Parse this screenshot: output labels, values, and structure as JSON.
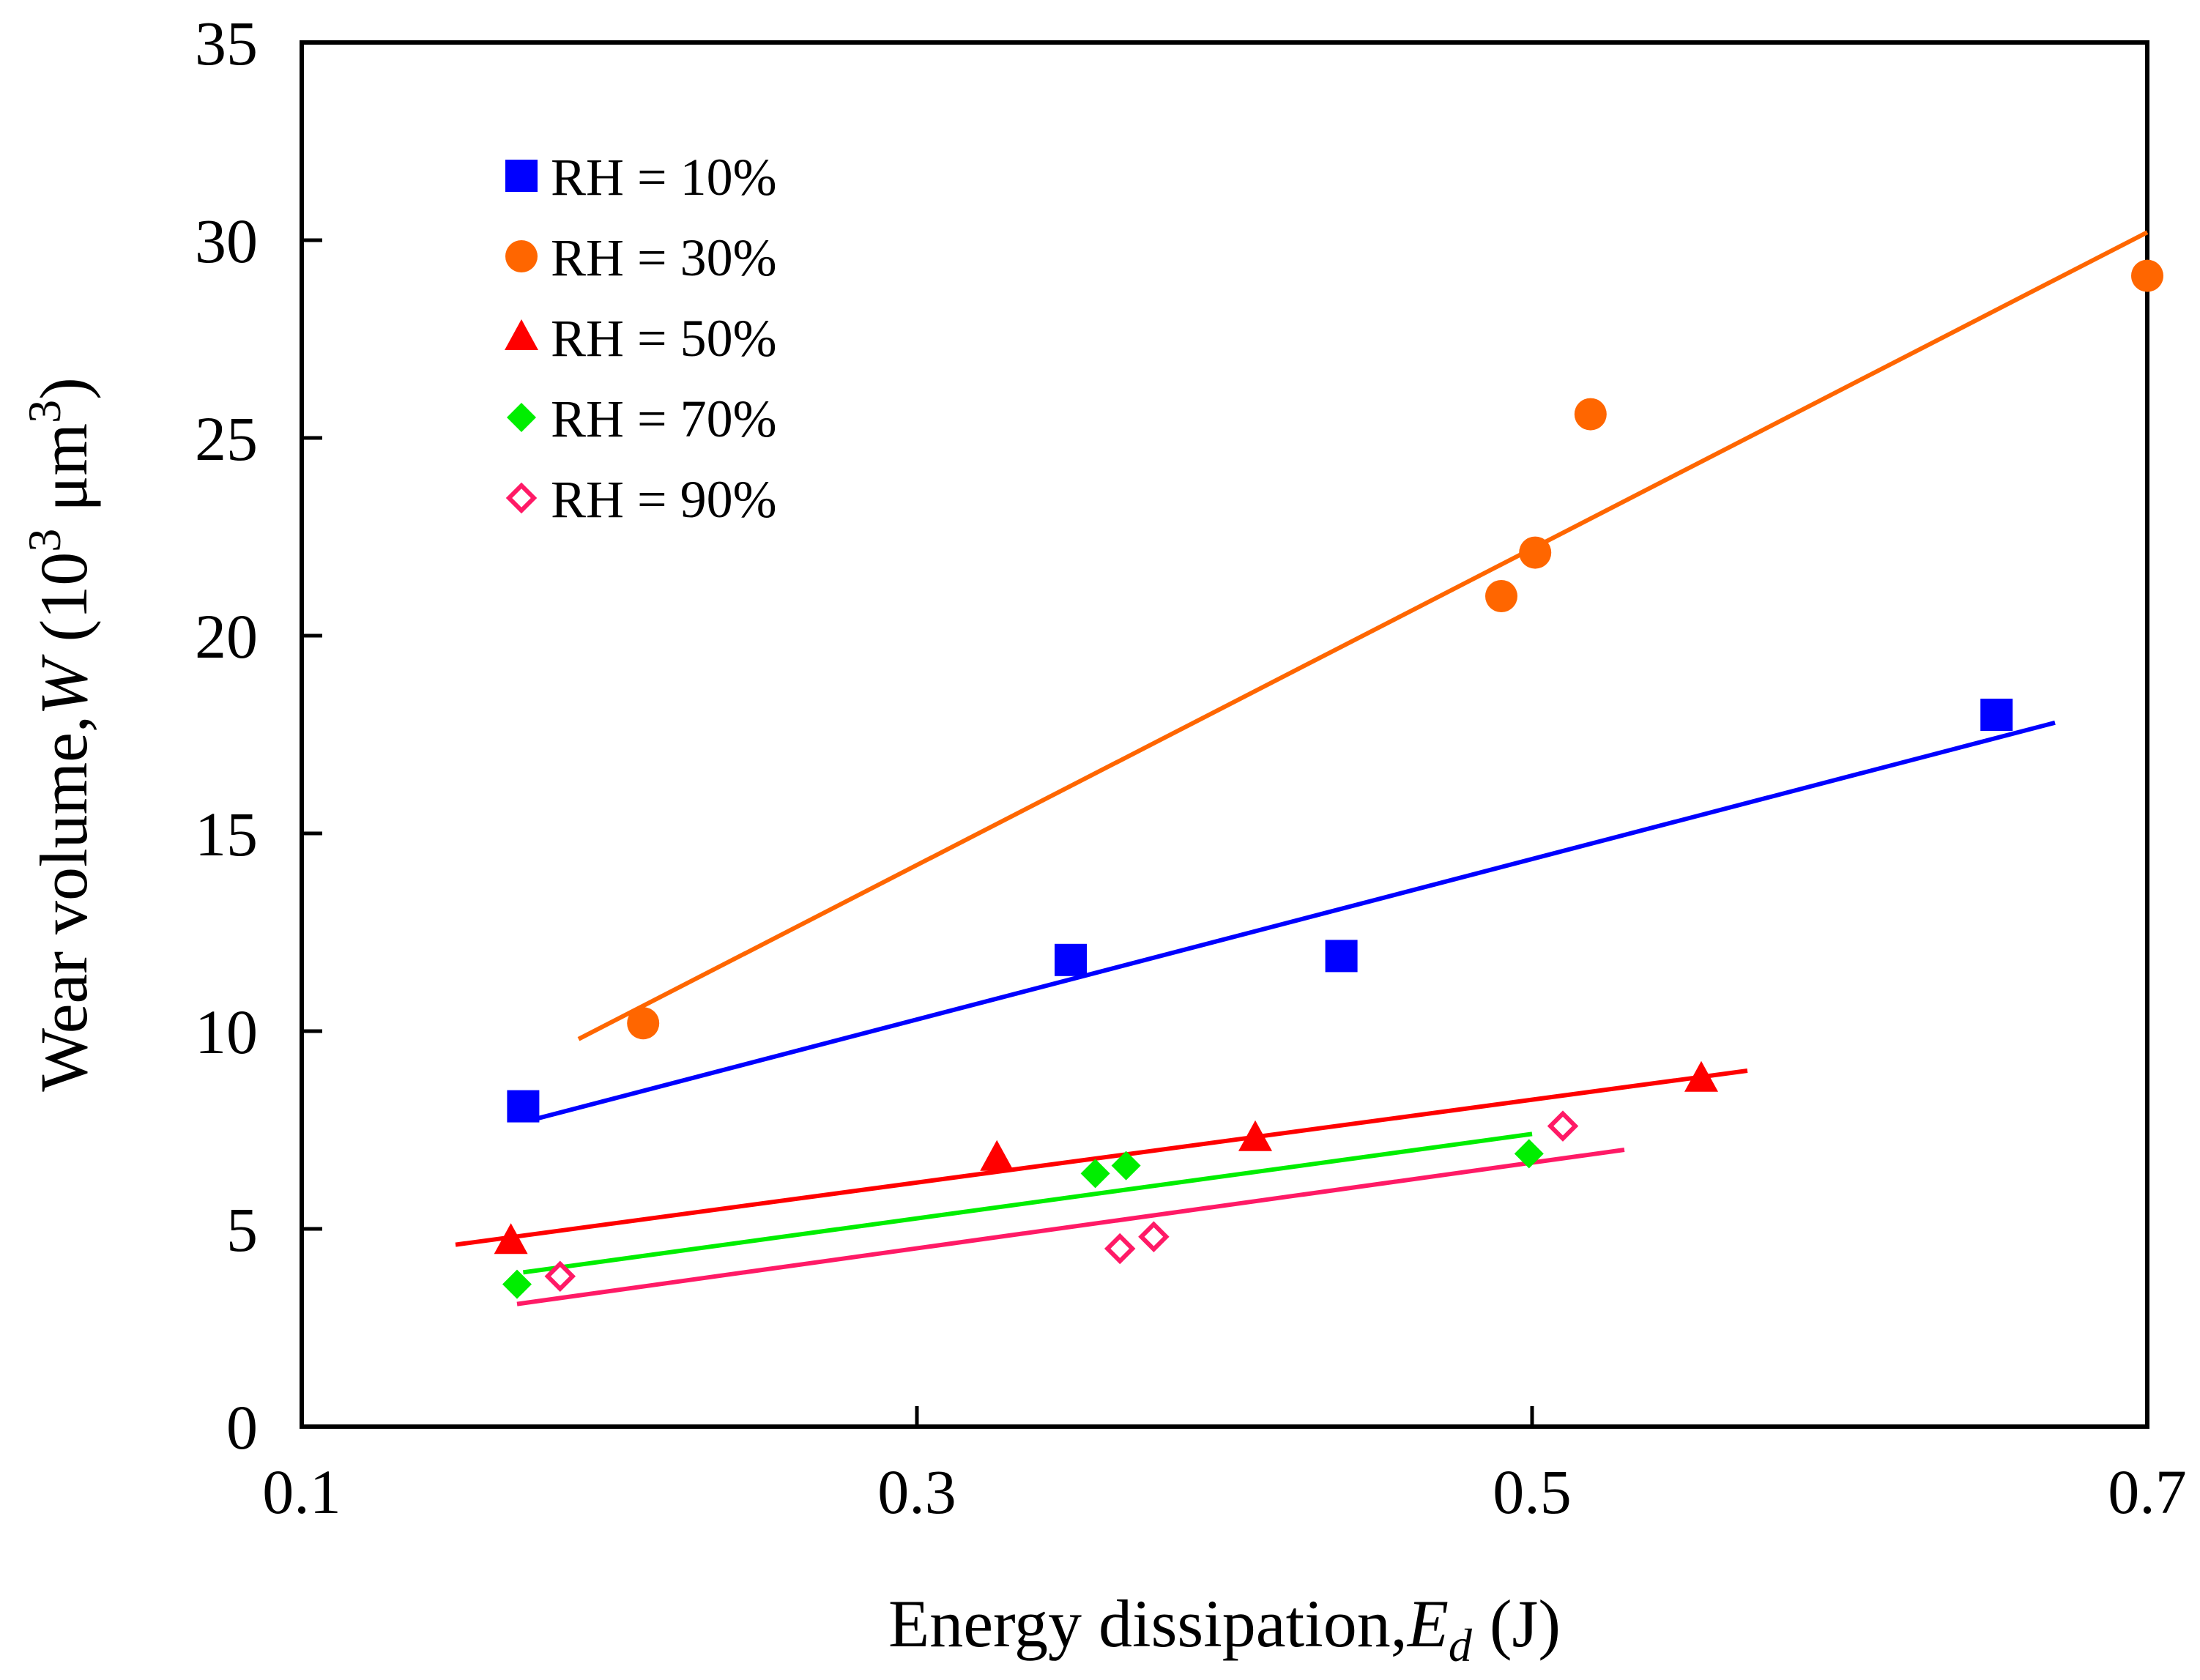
{
  "chart_data": {
    "type": "scatter",
    "title": "",
    "xlabel": "Energy dissipation,",
    "xlabel_var": "E",
    "xlabel_sub": "d",
    "xlabel_unit": "(J)",
    "ylabel": "Wear volume,",
    "ylabel_var": "W",
    "ylabel_unit_pre": "(10",
    "ylabel_unit_exp1": "3",
    "ylabel_unit_mid": " μm",
    "ylabel_unit_exp2": "3",
    "ylabel_unit_post": ")",
    "xlim": [
      0.1,
      0.7
    ],
    "ylim": [
      0,
      35
    ],
    "xticks": [
      0.1,
      0.3,
      0.5,
      0.7
    ],
    "xtick_labels": [
      "0.1",
      "0.3",
      "0.5",
      "0.7"
    ],
    "yticks": [
      0,
      5,
      10,
      15,
      20,
      25,
      30,
      35
    ],
    "ytick_labels": [
      "0",
      "5",
      "10",
      "15",
      "20",
      "25",
      "30",
      "35"
    ],
    "grid": false,
    "legend_position": "top-left",
    "series": [
      {
        "name": "RH = 10%",
        "marker": "square",
        "color": "#0000ff",
        "points": [
          [
            0.172,
            8.1
          ],
          [
            0.35,
            11.8
          ],
          [
            0.438,
            11.9
          ],
          [
            0.651,
            18.0
          ]
        ],
        "fit": [
          [
            0.177,
            7.8
          ],
          [
            0.67,
            17.8
          ]
        ]
      },
      {
        "name": "RH = 30%",
        "marker": "circle",
        "color": "#ff6600",
        "points": [
          [
            0.211,
            10.2
          ],
          [
            0.49,
            21.0
          ],
          [
            0.501,
            22.1
          ],
          [
            0.519,
            25.6
          ],
          [
            0.7,
            29.1
          ]
        ],
        "fit": [
          [
            0.19,
            9.8
          ],
          [
            0.7,
            30.2
          ]
        ]
      },
      {
        "name": "RH = 50%",
        "marker": "triangle",
        "color": "#ff0000",
        "points": [
          [
            0.168,
            4.7
          ],
          [
            0.326,
            6.8
          ],
          [
            0.41,
            7.3
          ],
          [
            0.555,
            8.8
          ]
        ],
        "fit": [
          [
            0.15,
            4.6
          ],
          [
            0.57,
            9.0
          ]
        ]
      },
      {
        "name": "RH = 70%",
        "marker": "diamond",
        "color": "#00ee00",
        "points": [
          [
            0.17,
            3.6
          ],
          [
            0.358,
            6.4
          ],
          [
            0.368,
            6.6
          ],
          [
            0.499,
            6.9
          ]
        ],
        "fit": [
          [
            0.172,
            3.9
          ],
          [
            0.5,
            7.4
          ]
        ]
      },
      {
        "name": "RH = 90%",
        "marker": "diamond-open",
        "color": "#ff1a66",
        "points": [
          [
            0.184,
            3.8
          ],
          [
            0.366,
            4.5
          ],
          [
            0.377,
            4.8
          ],
          [
            0.51,
            7.6
          ]
        ],
        "fit": [
          [
            0.17,
            3.1
          ],
          [
            0.53,
            7.0
          ]
        ]
      }
    ]
  }
}
